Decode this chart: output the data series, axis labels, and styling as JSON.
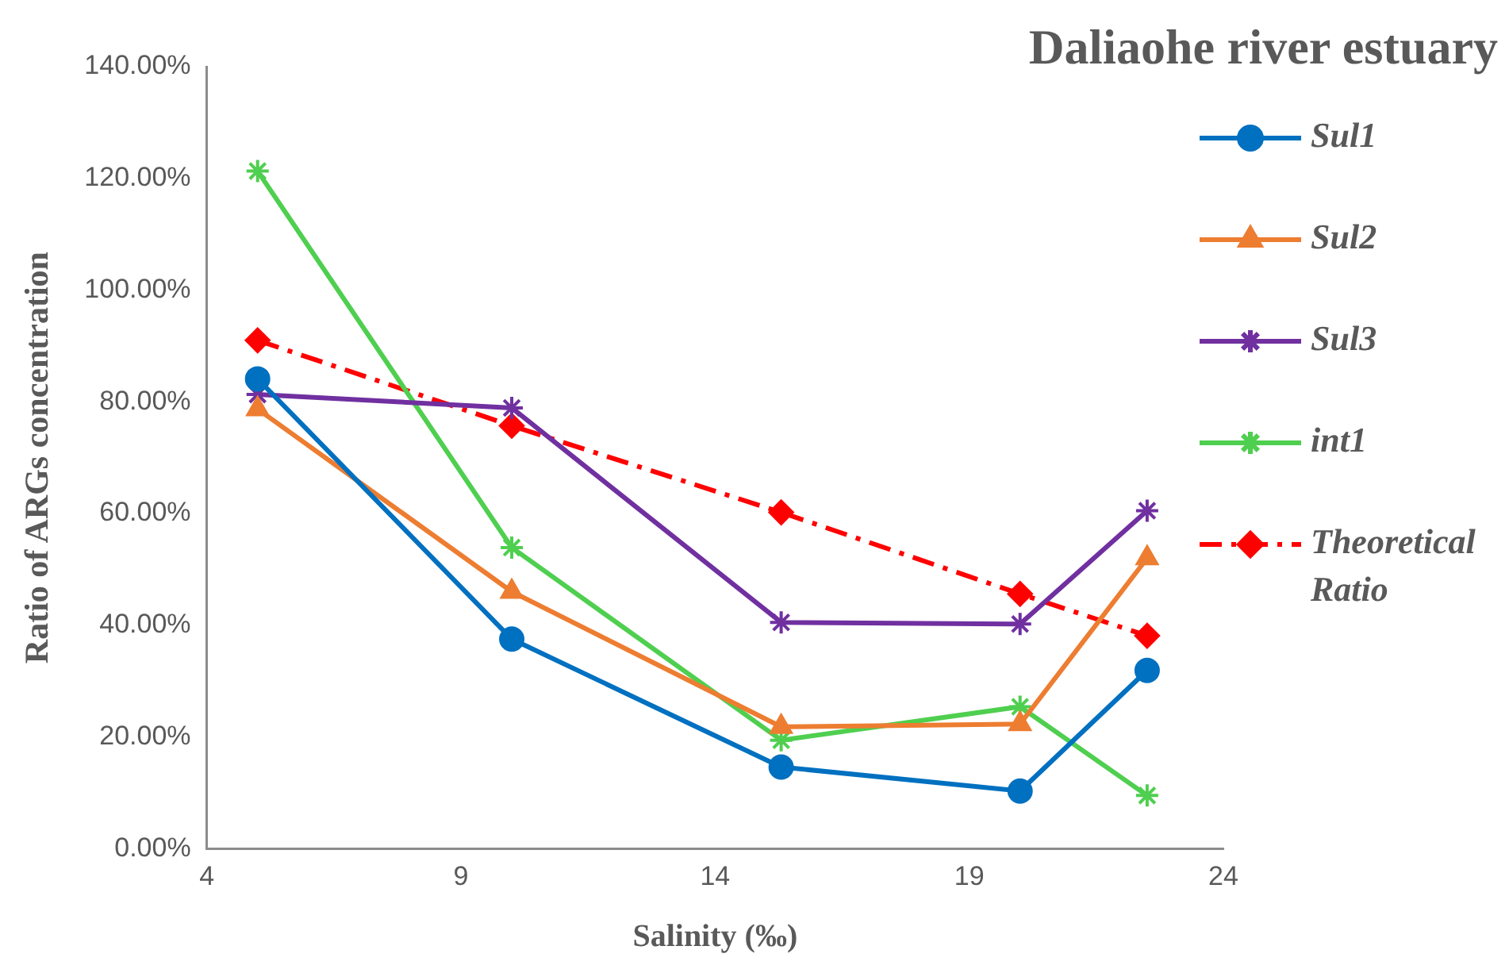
{
  "chart_data": {
    "type": "line",
    "title": "Daliaohe river estuary",
    "xlabel": "Salinity (‰)",
    "ylabel": "Ratio of ARGs concentration",
    "x": [
      5,
      10,
      15.3,
      20,
      22.5
    ],
    "series": [
      {
        "name": "Sul1",
        "color": "#0070c0",
        "marker": "circle",
        "line_style": "solid",
        "values": [
          84.1,
          37.5,
          14.6,
          10.3,
          31.9
        ]
      },
      {
        "name": "Sul2",
        "color": "#ed7d31",
        "marker": "triangle",
        "line_style": "solid",
        "values": [
          78.7,
          46,
          21.8,
          22.3,
          52
        ]
      },
      {
        "name": "Sul3",
        "color": "#7030a0",
        "marker": "cross",
        "line_style": "solid",
        "values": [
          81.3,
          78.9,
          40.5,
          40.2,
          60.5
        ]
      },
      {
        "name": "int1",
        "color": "#4fcf4f",
        "marker": "cross",
        "line_style": "solid",
        "values": [
          121.3,
          53.9,
          19.4,
          25.4,
          9.5
        ]
      },
      {
        "name": "Theoretical Ratio",
        "color": "#ff0000",
        "marker": "diamond",
        "line_style": "dashed",
        "values": [
          91,
          75.7,
          60.2,
          45.6,
          38.1
        ]
      }
    ],
    "xlim": [
      4,
      24
    ],
    "xticks": [
      4,
      9,
      14,
      19,
      24
    ],
    "ylim": [
      0,
      140
    ],
    "yticks": [
      {
        "value": 0,
        "label": "0.00%"
      },
      {
        "value": 20,
        "label": "20.00%"
      },
      {
        "value": 40,
        "label": "40.00%"
      },
      {
        "value": 60,
        "label": "60.00%"
      },
      {
        "value": 80,
        "label": "80.00%"
      },
      {
        "value": 100,
        "label": "100.00%"
      },
      {
        "value": 120,
        "label": "120.00%"
      },
      {
        "value": 140,
        "label": "140.00%"
      }
    ],
    "grid": false,
    "legend": "right"
  }
}
